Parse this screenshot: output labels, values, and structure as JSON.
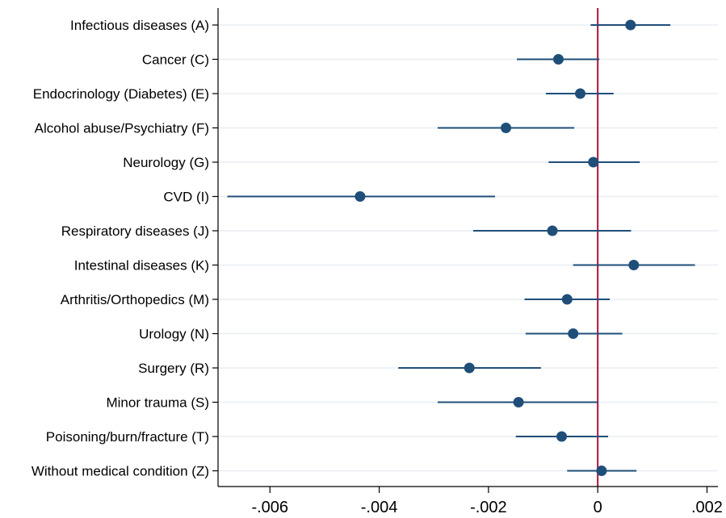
{
  "chart_data": {
    "type": "dot-whisker",
    "orientation": "horizontal",
    "categories": [
      "Infectious diseases (A)",
      "Cancer (C)",
      "Endocrinology (Diabetes) (E)",
      "Alcohol abuse/Psychiatry (F)",
      "Neurology (G)",
      "CVD (I)",
      "Respiratory diseases (J)",
      "Intestinal diseases (K)",
      "Arthritis/Orthopedics (M)",
      "Urology (N)",
      "Surgery (R)",
      "Minor trauma (S)",
      "Poisoning/burn/fracture (T)",
      "Without medical condition (Z)"
    ],
    "estimates": [
      0.0006,
      -0.00072,
      -0.00032,
      -0.00168,
      -8e-05,
      -0.00435,
      -0.00083,
      0.00066,
      -0.00056,
      -0.00045,
      -0.00235,
      -0.00145,
      -0.00066,
      7e-05
    ],
    "ci_low": [
      -0.00013,
      -0.00148,
      -0.00095,
      -0.00293,
      -0.0009,
      -0.00678,
      -0.00228,
      -0.00045,
      -0.00134,
      -0.00132,
      -0.00365,
      -0.00293,
      -0.0015,
      -0.00056
    ],
    "ci_high": [
      0.00133,
      3e-05,
      0.00029,
      -0.00043,
      0.00077,
      -0.00188,
      0.00061,
      0.00178,
      0.00022,
      0.00045,
      -0.00104,
      0.0,
      0.00019,
      0.00071
    ],
    "xlim": [
      -0.00695,
      0.0022
    ],
    "xticks": [
      -0.006,
      -0.004,
      -0.002,
      0,
      0.002
    ],
    "xtick_labels": [
      "-.006",
      "-.004",
      "-.002",
      "0",
      ".002"
    ],
    "reference_line": 0,
    "grid": true,
    "title": "",
    "xlabel": "",
    "ylabel": "",
    "colors": {
      "marker": "#1f4e79",
      "ci_line": "#1f4e79",
      "reference_line": "#b0123a",
      "grid": "#e8eef3",
      "axis": "#000000"
    }
  }
}
